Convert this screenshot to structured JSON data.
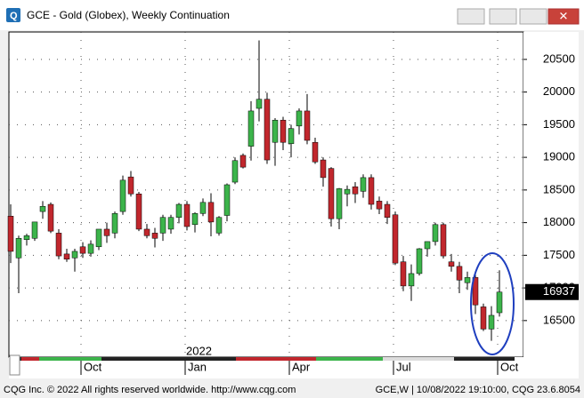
{
  "window": {
    "title": "GCE - Gold (Globex), Weekly Continuation",
    "footer_left": "CQG Inc. © 2022 All rights reserved worldwide. http://www.cqg.com",
    "footer_right": "GCE,W | 10/08/2022 19:10:00, CQG 23.6.8054"
  },
  "chart_data": {
    "type": "candlestick",
    "categories": [
      null,
      null,
      null,
      null,
      null,
      null,
      null,
      null,
      null,
      "Oct",
      null,
      null,
      null,
      null,
      null,
      null,
      null,
      null,
      null,
      null,
      null,
      null,
      "Jan",
      null,
      null,
      null,
      null,
      null,
      null,
      null,
      null,
      null,
      null,
      null,
      null,
      "Apr",
      null,
      null,
      null,
      null,
      null,
      null,
      null,
      null,
      null,
      null,
      null,
      null,
      "Jul",
      null,
      null,
      null,
      null,
      null,
      null,
      null,
      null,
      null,
      null,
      null,
      null,
      "Oct"
    ],
    "year_label": "2022",
    "open": [
      18100,
      17460,
      17740,
      17760,
      18170,
      18280,
      17840,
      17520,
      17460,
      17630,
      17530,
      17630,
      17900,
      17840,
      18170,
      18700,
      18440,
      17900,
      17840,
      17840,
      17900,
      18080,
      18280,
      17970,
      18140,
      18310,
      17840,
      18110,
      18620,
      19030,
      19170,
      19750,
      19890,
      19230,
      19570,
      19210,
      19480,
      19710,
      19230,
      18960,
      18830,
      18060,
      18440,
      18550,
      18480,
      18690,
      18330,
      18280,
      18120,
      17400,
      17030,
      17220,
      17600,
      17710,
      17970,
      17400,
      17330,
      17080,
      17160,
      16710,
      16370,
      16620
    ],
    "high": [
      18280,
      17800,
      17830,
      18010,
      18330,
      18310,
      17900,
      17600,
      17600,
      17700,
      17730,
      17900,
      18000,
      18170,
      18720,
      18790,
      18470,
      17980,
      17920,
      18120,
      18120,
      18300,
      18330,
      18160,
      18370,
      18450,
      18100,
      18600,
      19000,
      19060,
      19860,
      20790,
      19990,
      19600,
      19620,
      19500,
      19750,
      19970,
      19300,
      19000,
      18850,
      18530,
      18570,
      18620,
      18740,
      18740,
      18400,
      18330,
      18170,
      17490,
      17360,
      17610,
      17710,
      18000,
      18000,
      17520,
      17400,
      17250,
      17220,
      16760,
      16720,
      17270
    ],
    "low": [
      17380,
      16920,
      17650,
      17720,
      18060,
      17840,
      17440,
      17400,
      17250,
      17460,
      17480,
      17580,
      17690,
      17760,
      18120,
      18400,
      17870,
      17760,
      17620,
      17720,
      17830,
      17990,
      17880,
      17850,
      18100,
      17790,
      17800,
      18020,
      18590,
      18830,
      18950,
      19550,
      18900,
      18870,
      19110,
      19000,
      19350,
      19200,
      18900,
      18550,
      17940,
      17900,
      18250,
      18300,
      18380,
      18200,
      18130,
      17980,
      17350,
      16950,
      16800,
      17190,
      17480,
      17650,
      17450,
      17250,
      16920,
      16970,
      16600,
      16340,
      16190,
      16560
    ],
    "close": [
      17560,
      17760,
      17800,
      18010,
      18250,
      17870,
      17490,
      17440,
      17560,
      17530,
      17670,
      17900,
      17800,
      18140,
      18650,
      18440,
      17900,
      17800,
      17760,
      18080,
      18080,
      18280,
      17940,
      18140,
      18310,
      18010,
      18080,
      18580,
      18950,
      18850,
      19710,
      19890,
      18960,
      19570,
      19230,
      19440,
      19710,
      19260,
      18930,
      18690,
      18060,
      18520,
      18510,
      18440,
      18690,
      18280,
      18210,
      18080,
      17380,
      17030,
      17220,
      17600,
      17710,
      17970,
      17490,
      17330,
      17120,
      17160,
      16740,
      16370,
      16580,
      16937
    ],
    "last_price": 16937,
    "up_color": "#3cb44b",
    "down_color": "#c1272d",
    "ylim": [
      15940,
      20920
    ],
    "yticks": [
      16500,
      17000,
      17500,
      18000,
      18500,
      19000,
      19500,
      20000,
      20500
    ],
    "grid": true
  }
}
